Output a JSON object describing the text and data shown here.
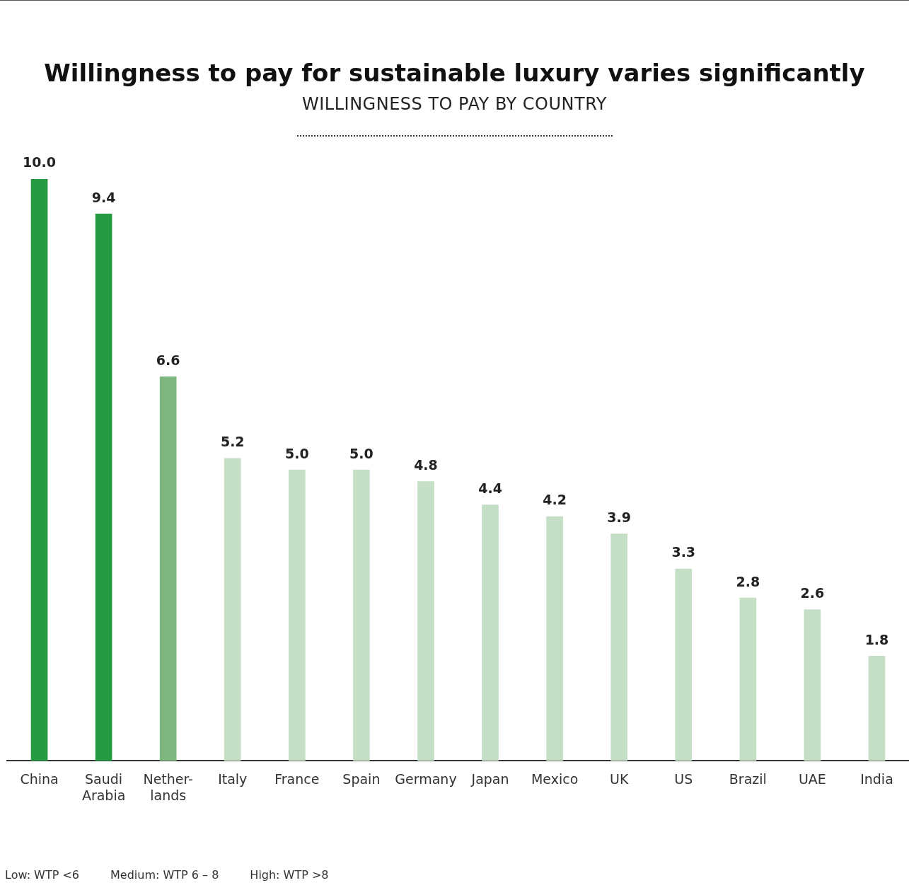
{
  "chart_data": {
    "type": "bar",
    "title": "Willingness to pay for sustainable luxury varies significantly",
    "subtitle": "WILLINGNESS TO PAY BY COUNTRY",
    "categories": [
      "China",
      "Saudi Arabia",
      "Nether-lands",
      "Italy",
      "France",
      "Spain",
      "Germany",
      "Japan",
      "Mexico",
      "UK",
      "US",
      "Brazil",
      "UAE",
      "India"
    ],
    "values": [
      10.0,
      9.4,
      6.6,
      5.2,
      5.0,
      5.0,
      4.8,
      4.4,
      4.2,
      3.9,
      3.3,
      2.8,
      2.6,
      1.8
    ],
    "colors": [
      "#259a42",
      "#259a42",
      "#7db67f",
      "#c5dfc6",
      "#c5dfc6",
      "#c5dfc6",
      "#c5dfc6",
      "#c5dfc6",
      "#c5dfc6",
      "#c5dfc6",
      "#c5dfc6",
      "#c5dfc6",
      "#c5dfc6",
      "#c5dfc6"
    ],
    "value_labels": [
      "10.0",
      "9.4",
      "6.6",
      "5.2",
      "5.0",
      "5.0",
      "4.8",
      "4.4",
      "4.2",
      "3.9",
      "3.3",
      "2.8",
      "2.6",
      "1.8"
    ],
    "grid": false,
    "legend": false,
    "tick_labels": "x",
    "annotations": [
      "Low: WTP <6",
      "Medium: WTP 6 – 8",
      "High: WTP >8"
    ]
  }
}
